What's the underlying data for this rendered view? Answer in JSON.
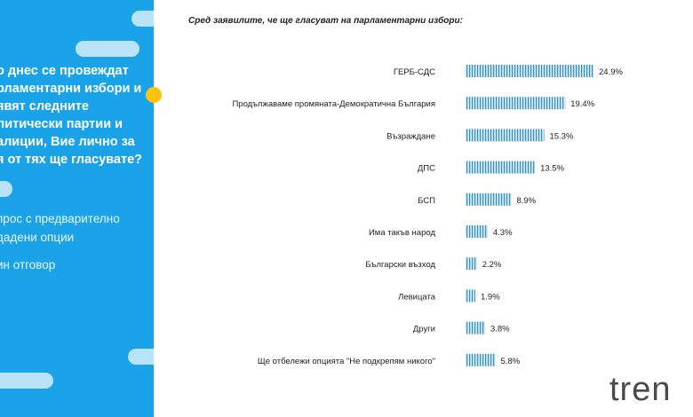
{
  "left_panel": {
    "question_lines": [
      "о днес се провеждат",
      "рламентарни избори и",
      "явят следните",
      "литически партии и",
      "алиции, Вие лично за",
      "я от тях ще гласувате?"
    ],
    "note_lines": [
      "прос с предварително",
      "дадени опции",
      "ин отговор"
    ],
    "panel_color": "#1aa3e8",
    "pill_color": "#b9e3f8",
    "accent_color": "#ffc20e"
  },
  "chart_data": {
    "type": "bar",
    "orientation": "horizontal",
    "title": "Сред заявилите, че ще гласуват на парламентарни избори:",
    "categories": [
      "ГЕРБ-СДС",
      "Продължаваме промяната-Демократична България",
      "Възраждане",
      "ДПС",
      "БСП",
      "Има такъв народ",
      "Български възход",
      "Левицата",
      "Други",
      "Ще отбележи опцията  \"Не подкрепям никого\""
    ],
    "values": [
      24.9,
      19.4,
      15.3,
      13.5,
      8.9,
      4.3,
      2.2,
      1.9,
      3.8,
      5.8
    ],
    "value_labels": [
      "24.9%",
      "19.4%",
      "15.3%",
      "13.5%",
      "8.9%",
      "4.3%",
      "2.2%",
      "1.9%",
      "3.8%",
      "5.8%"
    ],
    "bar_color": "#8ecbe6",
    "bar_stripe_color": "#3a8fbf",
    "grid": false,
    "legend": "none"
  },
  "logo": {
    "text": "tren"
  }
}
